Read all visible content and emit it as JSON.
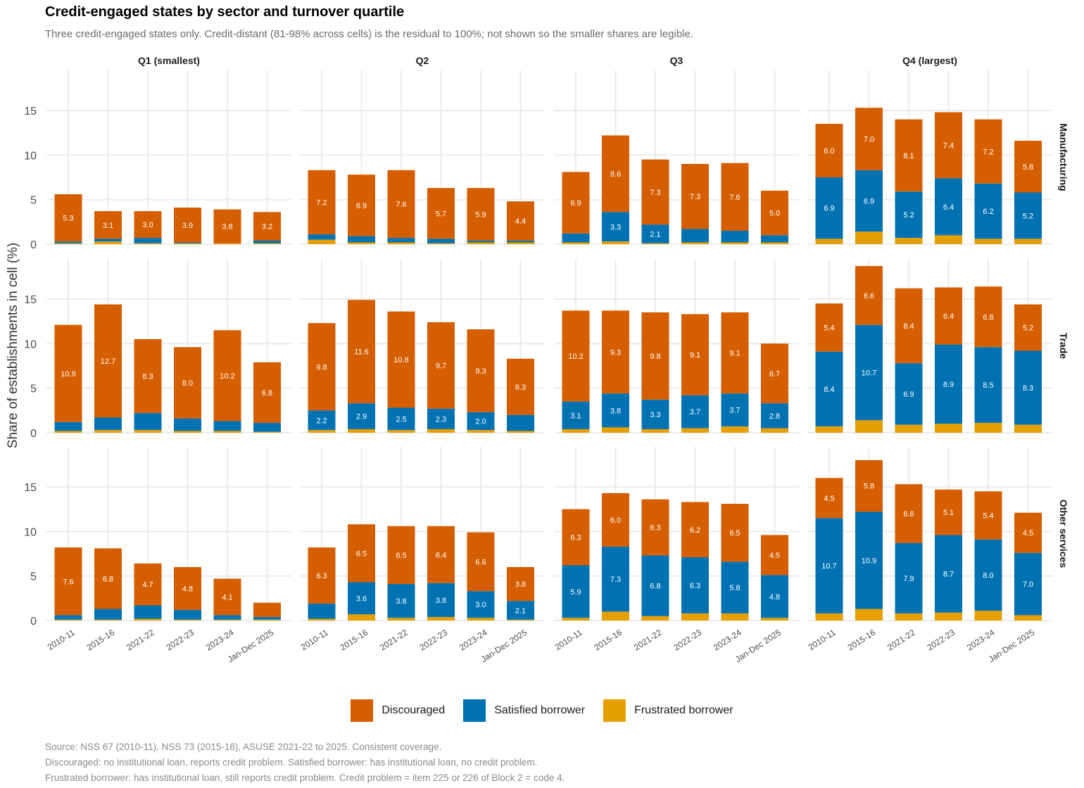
{
  "title": "Credit-engaged states by sector and turnover quartile",
  "subtitle": "Three credit-engaged states only. Credit-distant (81-98% across cells) is the residual to 100%; not shown so the smaller shares are legible.",
  "footer": [
    "Source: NSS 67 (2010-11), NSS 73 (2015-16), ASUSE 2021-22 to 2025. Consistent coverage.",
    "Discouraged: no institutional loan, reports credit problem. Satisfied borrower: has institutional loan, no credit problem.",
    "Frustrated borrower: has institutional loan, still reports credit problem. Credit problem = item 225 or 226 of Block 2 = code 4."
  ],
  "legend": [
    {
      "label": "Discouraged",
      "color": "#D55E00"
    },
    {
      "label": "Satisfied borrower",
      "color": "#0072B2"
    },
    {
      "label": "Frustrated borrower",
      "color": "#E69F00"
    }
  ],
  "chart_data": {
    "type": "bar",
    "stacked": true,
    "ylabel": "Share of establishments in cell (%)",
    "ylim": [
      0,
      19.5
    ],
    "yticks": [
      0,
      5,
      10,
      15
    ],
    "grid": true,
    "legend_position": "bottom",
    "columns": [
      "Q1 (smallest)",
      "Q2",
      "Q3",
      "Q4 (largest)"
    ],
    "rows": [
      "Manufacturing",
      "Trade",
      "Other services"
    ],
    "categories": [
      "2010-11",
      "2015-16",
      "2021-22",
      "2022-23",
      "2023-24",
      "Jan-Dec 2025"
    ],
    "series_order": [
      "Frustrated borrower",
      "Satisfied borrower",
      "Discouraged"
    ],
    "colors": {
      "Discouraged": "#D55E00",
      "Satisfied borrower": "#0072B2",
      "Frustrated borrower": "#E69F00"
    },
    "panels": [
      {
        "row": "Manufacturing",
        "col": "Q1 (smallest)",
        "Discouraged": [
          5.3,
          3.1,
          3.0,
          3.9,
          3.8,
          3.2
        ],
        "Satisfied borrower": [
          0.2,
          0.3,
          0.6,
          0.1,
          0.0,
          0.3
        ],
        "Frustrated borrower": [
          0.1,
          0.3,
          0.1,
          0.1,
          0.1,
          0.1
        ]
      },
      {
        "row": "Manufacturing",
        "col": "Q2",
        "Discouraged": [
          7.2,
          6.9,
          7.6,
          5.7,
          5.9,
          4.4
        ],
        "Satisfied borrower": [
          0.6,
          0.7,
          0.5,
          0.5,
          0.2,
          0.2
        ],
        "Frustrated borrower": [
          0.5,
          0.2,
          0.2,
          0.1,
          0.2,
          0.2
        ]
      },
      {
        "row": "Manufacturing",
        "col": "Q3",
        "Discouraged": [
          6.9,
          8.6,
          7.3,
          7.3,
          7.6,
          5.0
        ],
        "Satisfied borrower": [
          1.0,
          3.3,
          2.1,
          1.5,
          1.3,
          0.8
        ],
        "Frustrated borrower": [
          0.2,
          0.3,
          0.1,
          0.2,
          0.2,
          0.2
        ]
      },
      {
        "row": "Manufacturing",
        "col": "Q4 (largest)",
        "Discouraged": [
          6.0,
          7.0,
          8.1,
          7.4,
          7.2,
          5.8
        ],
        "Satisfied borrower": [
          6.9,
          6.9,
          5.2,
          6.4,
          6.2,
          5.2
        ],
        "Frustrated borrower": [
          0.6,
          1.4,
          0.7,
          1.0,
          0.6,
          0.6
        ]
      },
      {
        "row": "Trade",
        "col": "Q1 (smallest)",
        "Discouraged": [
          10.9,
          12.7,
          8.3,
          8.0,
          10.2,
          6.8
        ],
        "Satisfied borrower": [
          1.0,
          1.4,
          1.9,
          1.4,
          1.1,
          1.0
        ],
        "Frustrated borrower": [
          0.2,
          0.3,
          0.3,
          0.2,
          0.2,
          0.1
        ]
      },
      {
        "row": "Trade",
        "col": "Q2",
        "Discouraged": [
          9.8,
          11.6,
          10.8,
          9.7,
          9.3,
          6.3
        ],
        "Satisfied borrower": [
          2.2,
          2.9,
          2.5,
          2.3,
          2.0,
          1.8
        ],
        "Frustrated borrower": [
          0.3,
          0.4,
          0.3,
          0.4,
          0.3,
          0.2
        ]
      },
      {
        "row": "Trade",
        "col": "Q3",
        "Discouraged": [
          10.2,
          9.3,
          9.8,
          9.1,
          9.1,
          6.7
        ],
        "Satisfied borrower": [
          3.1,
          3.8,
          3.3,
          3.7,
          3.7,
          2.8
        ],
        "Frustrated borrower": [
          0.4,
          0.6,
          0.4,
          0.5,
          0.7,
          0.5
        ]
      },
      {
        "row": "Trade",
        "col": "Q4 (largest)",
        "Discouraged": [
          5.4,
          6.6,
          8.4,
          6.4,
          6.8,
          5.2
        ],
        "Satisfied borrower": [
          8.4,
          10.7,
          6.9,
          8.9,
          8.5,
          8.3
        ],
        "Frustrated borrower": [
          0.7,
          1.4,
          0.9,
          1.0,
          1.1,
          0.9
        ]
      },
      {
        "row": "Other services",
        "col": "Q1 (smallest)",
        "Discouraged": [
          7.6,
          6.8,
          4.7,
          4.8,
          4.1,
          1.6
        ],
        "Satisfied borrower": [
          0.5,
          1.2,
          1.5,
          1.1,
          0.5,
          0.3
        ],
        "Frustrated borrower": [
          0.1,
          0.1,
          0.2,
          0.1,
          0.1,
          0.1
        ]
      },
      {
        "row": "Other services",
        "col": "Q2",
        "Discouraged": [
          6.3,
          6.5,
          6.5,
          6.4,
          6.6,
          3.8
        ],
        "Satisfied borrower": [
          1.7,
          3.6,
          3.8,
          3.8,
          3.0,
          2.1
        ],
        "Frustrated borrower": [
          0.2,
          0.7,
          0.3,
          0.4,
          0.3,
          0.1
        ]
      },
      {
        "row": "Other services",
        "col": "Q3",
        "Discouraged": [
          6.3,
          6.0,
          6.3,
          6.2,
          6.5,
          4.5
        ],
        "Satisfied borrower": [
          5.9,
          7.3,
          6.8,
          6.3,
          5.8,
          4.8
        ],
        "Frustrated borrower": [
          0.3,
          1.0,
          0.5,
          0.8,
          0.8,
          0.3
        ]
      },
      {
        "row": "Other services",
        "col": "Q4 (largest)",
        "Discouraged": [
          4.5,
          5.8,
          6.6,
          5.1,
          5.4,
          4.5
        ],
        "Satisfied borrower": [
          10.7,
          10.9,
          7.9,
          8.7,
          8.0,
          7.0
        ],
        "Frustrated borrower": [
          0.8,
          1.3,
          0.8,
          0.9,
          1.1,
          0.6
        ]
      }
    ]
  }
}
